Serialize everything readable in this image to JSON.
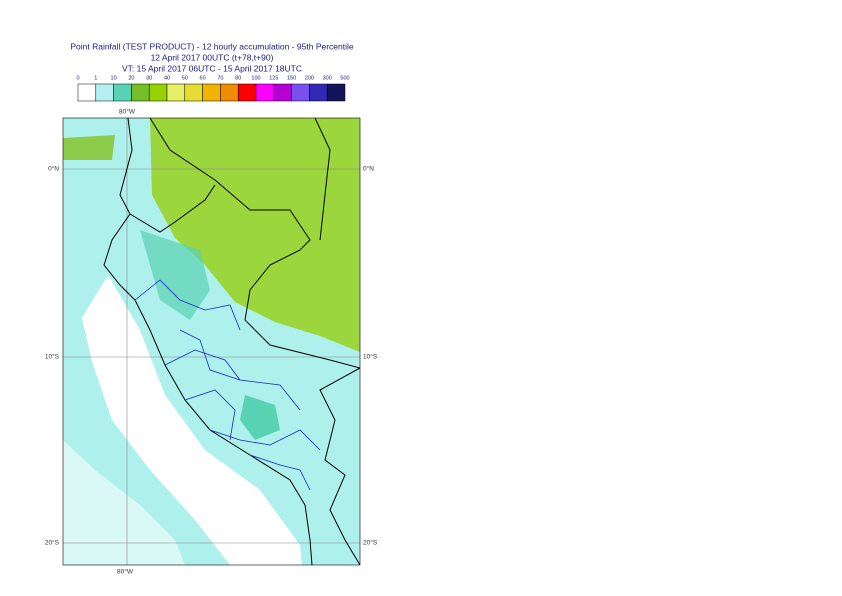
{
  "header": {
    "title": "Point Rainfall (TEST PRODUCT) - 12 hourly accumulation - 95th Percentile",
    "subtitle": "12 April 2017 00UTC (t+78,t+90)",
    "valid_time": "VT: 15 April 2017 06UTC - 15 April 2017 18UTC"
  },
  "legend": {
    "labels": [
      "0",
      "1",
      "10",
      "20",
      "30",
      "40",
      "50",
      "60",
      "70",
      "80",
      "100",
      "125",
      "150",
      "200",
      "300",
      "500"
    ],
    "colors": [
      "#ffffff",
      "#b4f0f0",
      "#5ad2b4",
      "#78be28",
      "#96d200",
      "#e6f064",
      "#e6dc32",
      "#f0b400",
      "#f08c00",
      "#ff0000",
      "#ff00ff",
      "#b400d2",
      "#7850f0",
      "#3228b4",
      "#14145a"
    ]
  },
  "map": {
    "lon_labels": [
      "80°W"
    ],
    "lat_labels": [
      "0°N",
      "10°S",
      "20°S"
    ]
  }
}
